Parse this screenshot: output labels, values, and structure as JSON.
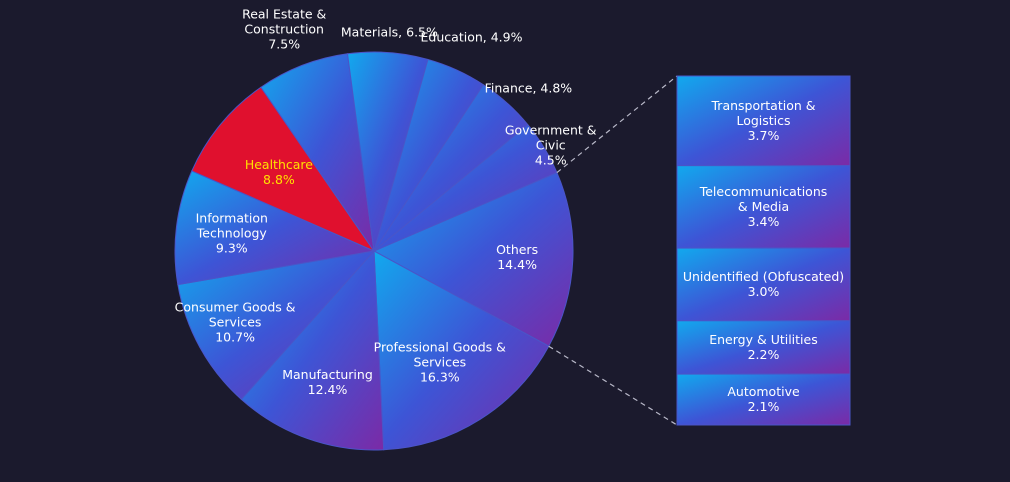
{
  "chart_data": {
    "type": "pie",
    "title": "",
    "highlight_color": "#e0102e",
    "highlight_text_color": "#ffe100",
    "gradient_colors": [
      "#11a9ee",
      "#3d55d6",
      "#7b2aa6"
    ],
    "slices": [
      {
        "label": "Others",
        "value": 14.4,
        "value_label": "14.4%"
      },
      {
        "label": "Professional Goods & Services",
        "value": 16.3,
        "value_label": "16.3%"
      },
      {
        "label": "Manufacturing",
        "value": 12.4,
        "value_label": "12.4%"
      },
      {
        "label": "Consumer Goods & Services",
        "value": 10.7,
        "value_label": "10.7%"
      },
      {
        "label": "Information Technology",
        "value": 9.3,
        "value_label": "9.3%"
      },
      {
        "label": "Healthcare",
        "value": 8.8,
        "value_label": "8.8%",
        "highlight": true
      },
      {
        "label": "Real Estate & Construction",
        "value": 7.5,
        "value_label": "7.5%"
      },
      {
        "label": "Materials",
        "value": 6.5,
        "value_label": "6.5%"
      },
      {
        "label": "Education",
        "value": 4.9,
        "value_label": "4.9%"
      },
      {
        "label": "Finance",
        "value": 4.8,
        "value_label": "4.8%"
      },
      {
        "label": "Government & Civic",
        "value": 4.5,
        "value_label": "4.5%"
      }
    ],
    "breakdown_of": "Others",
    "breakdown": [
      {
        "label": "Transportation & Logistics",
        "value": 3.7,
        "value_label": "3.7%"
      },
      {
        "label": "Telecommunications & Media",
        "value": 3.4,
        "value_label": "3.4%"
      },
      {
        "label": "Unidentified (Obfuscated)",
        "value": 3.0,
        "value_label": "3.0%"
      },
      {
        "label": "Energy & Utilities",
        "value": 2.2,
        "value_label": "2.2%"
      },
      {
        "label": "Automotive",
        "value": 2.1,
        "value_label": "2.1%"
      }
    ]
  }
}
